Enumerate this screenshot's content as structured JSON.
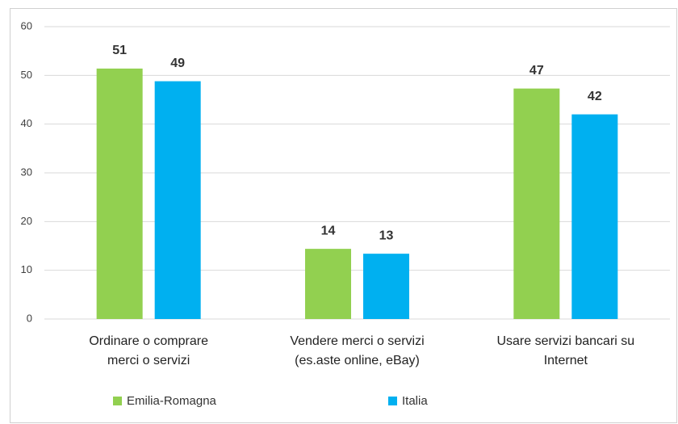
{
  "chart_data": {
    "type": "bar",
    "categories": [
      "Ordinare o comprare\nmerci o servizi",
      "Vendere merci o servizi\n(es.aste online, eBay)",
      "Usare servizi bancari  su\nInternet"
    ],
    "series": [
      {
        "name": "Emilia-Romagna",
        "color": "#92d050",
        "values": [
          51.4,
          14.4,
          47.3
        ],
        "value_labels": [
          "51",
          "14",
          "47"
        ]
      },
      {
        "name": "Italia",
        "color": "#00b0f0",
        "values": [
          48.8,
          13.4,
          42.0
        ],
        "value_labels": [
          "49",
          "13",
          "42"
        ]
      }
    ],
    "ylim": [
      0,
      60
    ],
    "yticks": [
      0,
      10,
      20,
      30,
      40,
      50,
      60
    ],
    "grid": true,
    "legend": "bottom"
  }
}
